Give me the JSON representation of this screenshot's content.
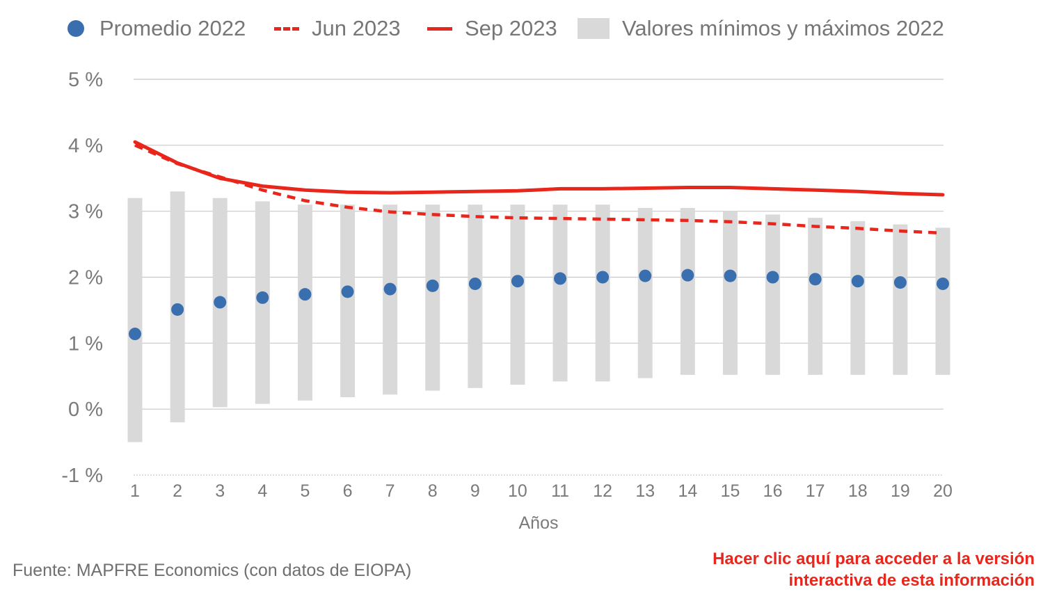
{
  "chart_data": {
    "type": "bar",
    "xlabel": "Años",
    "ylabel": "",
    "ylim": [
      -1,
      5
    ],
    "yticks": [
      5,
      4,
      3,
      2,
      1,
      0,
      -1
    ],
    "ytick_labels": [
      "5 %",
      "4 %",
      "3 %",
      "2 %",
      "1 %",
      "0 %",
      "-1 %"
    ],
    "categories": [
      "1",
      "2",
      "3",
      "4",
      "5",
      "6",
      "7",
      "8",
      "9",
      "10",
      "11",
      "12",
      "13",
      "14",
      "15",
      "16",
      "17",
      "18",
      "19",
      "20"
    ],
    "grid": true,
    "legend_position": "top",
    "series": [
      {
        "name": "Promedio 2022",
        "kind": "scatter",
        "color": "#3a6faf",
        "values": [
          1.14,
          1.51,
          1.62,
          1.69,
          1.74,
          1.78,
          1.82,
          1.87,
          1.9,
          1.94,
          1.98,
          2.0,
          2.02,
          2.03,
          2.02,
          2.0,
          1.97,
          1.94,
          1.92,
          1.9
        ]
      },
      {
        "name": "Jun 2023",
        "kind": "line-dashed",
        "color": "#e8261c",
        "values": [
          4.0,
          3.72,
          3.52,
          3.32,
          3.16,
          3.06,
          2.99,
          2.95,
          2.92,
          2.9,
          2.89,
          2.88,
          2.87,
          2.86,
          2.84,
          2.81,
          2.77,
          2.74,
          2.7,
          2.67
        ]
      },
      {
        "name": "Sep 2023",
        "kind": "line",
        "color": "#e8261c",
        "values": [
          4.05,
          3.73,
          3.5,
          3.38,
          3.32,
          3.29,
          3.28,
          3.29,
          3.3,
          3.31,
          3.34,
          3.34,
          3.35,
          3.36,
          3.36,
          3.34,
          3.32,
          3.3,
          3.27,
          3.25
        ]
      },
      {
        "name": "Valores mínimos y máximos 2022",
        "kind": "range-bar",
        "color": "#d9d9d9",
        "min": [
          -0.5,
          -0.2,
          0.03,
          0.08,
          0.13,
          0.18,
          0.22,
          0.28,
          0.32,
          0.37,
          0.42,
          0.42,
          0.47,
          0.52,
          0.52,
          0.52,
          0.52,
          0.52,
          0.52,
          0.52
        ],
        "max": [
          3.2,
          3.3,
          3.2,
          3.15,
          3.1,
          3.1,
          3.1,
          3.1,
          3.1,
          3.1,
          3.1,
          3.1,
          3.05,
          3.05,
          3.0,
          2.95,
          2.9,
          2.85,
          2.8,
          2.75
        ]
      }
    ]
  },
  "footer": {
    "source": "Fuente: MAPFRE Economics (con datos de EIOPA)",
    "link_line1": "Hacer clic aquí para acceder a la versión",
    "link_line2": "interactiva de esta información",
    "link_color": "#e8261c"
  }
}
